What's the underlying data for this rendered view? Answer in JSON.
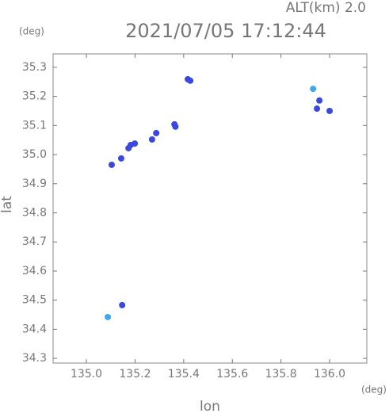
{
  "chart_data": {
    "type": "scatter",
    "title": "2021/07/05 17:12:44",
    "subtitle": "ALT(km) 2.0",
    "y_unit": "(deg)",
    "x_unit": "(deg)",
    "x_label": "lon",
    "y_label": "lat",
    "xlim": [
      134.863,
      136.153
    ],
    "ylim": [
      34.284,
      35.346
    ],
    "xticks": [
      {
        "value": 135,
        "label": "135.0"
      },
      135.2,
      135.4,
      135.6,
      135.8,
      {
        "value": 136,
        "label": "136.0"
      }
    ],
    "yticks": [
      34.3,
      34.4,
      34.5,
      34.6,
      34.7,
      34.8,
      34.9,
      {
        "value": 35,
        "label": "35.0"
      },
      35.1,
      35.2,
      35.3
    ],
    "series": [
      {
        "color": "#3848e0",
        "x": [
          135.417,
          135.427,
          135.362,
          135.366,
          135.287,
          135.27,
          135.182,
          135.173,
          135.199,
          135.143,
          135.104,
          135.958,
          135.948,
          136.0,
          135.147
        ],
        "values": [
          35.259,
          35.254,
          35.104,
          35.096,
          35.074,
          35.052,
          35.033,
          35.022,
          35.038,
          34.987,
          34.965,
          35.186,
          35.158,
          35.15,
          34.483
        ]
      },
      {
        "color": "#40a8f0",
        "x": [
          135.932,
          135.088
        ],
        "values": [
          35.226,
          34.442
        ]
      }
    ]
  }
}
